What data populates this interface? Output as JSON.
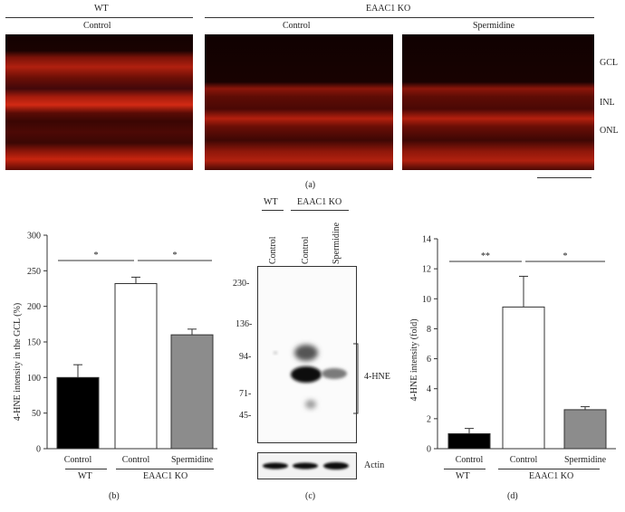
{
  "panel_a": {
    "group_wt": "WT",
    "group_ko": "EAAC1 KO",
    "col_labels": [
      "Control",
      "Control",
      "Spermidine"
    ],
    "layer_labels": [
      "GCL",
      "INL",
      "ONL"
    ],
    "caption": "(a)"
  },
  "panel_b": {
    "caption": "(b)",
    "group_wt": "WT",
    "group_ko": "EAAC1 KO",
    "sig": [
      "*",
      "*"
    ],
    "colors": {
      "wt": "#000000",
      "ko_control": "#ffffff",
      "ko_spermidine": "#8c8c8c"
    }
  },
  "panel_c": {
    "caption": "(c)",
    "group_wt": "WT",
    "group_ko": "EAAC1 KO",
    "lane_labels": [
      "Control",
      "Control",
      "Spermidine"
    ],
    "markers": [
      "230-",
      "136-",
      "94-",
      "71-",
      "45-"
    ],
    "band_label": "4-HNE",
    "loading_label": "Actin"
  },
  "panel_d": {
    "caption": "(d)",
    "group_wt": "WT",
    "group_ko": "EAAC1 KO",
    "sig": [
      "**",
      "*"
    ],
    "colors": {
      "wt": "#000000",
      "ko_control": "#ffffff",
      "ko_spermidine": "#8c8c8c"
    }
  },
  "chart_data": [
    {
      "type": "bar",
      "categories": [
        "Control",
        "Control",
        "Spermidine"
      ],
      "values": [
        100,
        232,
        160
      ],
      "errors": [
        18,
        9,
        8
      ],
      "ylabel": "4-HNE intensity in the GCL (%)",
      "ylim": [
        0,
        300
      ],
      "yticks": [
        0,
        50,
        100,
        150,
        200,
        250,
        300
      ],
      "grid": false
    },
    {
      "type": "bar",
      "categories": [
        "Control",
        "Control",
        "Spermidine"
      ],
      "values": [
        1.0,
        9.45,
        2.6
      ],
      "errors": [
        0.35,
        2.05,
        0.2
      ],
      "ylabel": "4-HNE intensity (fold)",
      "ylim": [
        0,
        14
      ],
      "yticks": [
        0,
        2,
        4,
        6,
        8,
        10,
        12,
        14
      ],
      "grid": false
    }
  ]
}
